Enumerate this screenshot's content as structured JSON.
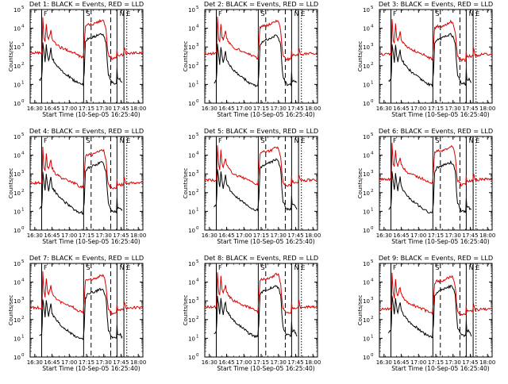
{
  "colors": {
    "events": "#000000",
    "lld": "#dd0000",
    "background": "#ffffff",
    "axis": "#000000"
  },
  "chart_data": {
    "type": "line",
    "ylabel": "Counts/sec",
    "xlabel": "Start Time (10-Sep-05 16:25:40)",
    "xticks": [
      "16:30",
      "16:45",
      "17:00",
      "17:15",
      "17:30",
      "17:45",
      "18:00"
    ],
    "xtick_minutes": [
      30,
      45,
      60,
      75,
      90,
      105,
      120
    ],
    "xlim_minutes": [
      26,
      124
    ],
    "ylim_log10": [
      0,
      5
    ],
    "ytick_exponents": [
      "0",
      "1",
      "2",
      "3",
      "4",
      "5"
    ],
    "ytick_base": "10",
    "markers": {
      "solid_minutes": [
        36,
        72.5,
        101.5,
        107.5
      ],
      "dashed_minutes": [
        79,
        96
      ],
      "dotted_minutes": [
        110
      ],
      "flags": [
        {
          "minute": 37,
          "label": "F"
        },
        {
          "minute": 74,
          "label": "S"
        },
        {
          "minute": 103,
          "label": "N"
        },
        {
          "minute": 109,
          "label": "E"
        }
      ]
    },
    "panels": [
      {
        "title": "Det 1: BLACK = Events, RED = LLD",
        "variant": 0
      },
      {
        "title": "Det 2: BLACK = Events, RED = LLD",
        "variant": 1
      },
      {
        "title": "Det 3: BLACK = Events, RED = LLD",
        "variant": 2
      },
      {
        "title": "Det 4: BLACK = Events, RED = LLD",
        "variant": 3
      },
      {
        "title": "Det 5: BLACK = Events, RED = LLD",
        "variant": 4
      },
      {
        "title": "Det 6: BLACK = Events, RED = LLD",
        "variant": 5
      },
      {
        "title": "Det 7: BLACK = Events, RED = LLD",
        "variant": 6
      },
      {
        "title": "Det 8: BLACK = Events, RED = LLD",
        "variant": 7
      },
      {
        "title": "Det 9: BLACK = Events, RED = LLD",
        "variant": 8
      }
    ],
    "series": [
      {
        "name": "Events",
        "color": "#000000",
        "points_minute_log10": [
          [
            34,
            1.2
          ],
          [
            36,
            1.3
          ],
          [
            36.5,
            1.8
          ],
          [
            37,
            3.2
          ],
          [
            38,
            2.7
          ],
          [
            39,
            2.2
          ],
          [
            40,
            3.1
          ],
          [
            41,
            2.6
          ],
          [
            42,
            2.2
          ],
          [
            44,
            2.9
          ],
          [
            45,
            2.4
          ],
          [
            48,
            2.1
          ],
          [
            52,
            1.8
          ],
          [
            56,
            1.6
          ],
          [
            60,
            1.4
          ],
          [
            64,
            1.2
          ],
          [
            68,
            1.05
          ],
          [
            72,
            1.0
          ],
          [
            73,
            1.6
          ],
          [
            74,
            3.2
          ],
          [
            76,
            3.4
          ],
          [
            80,
            3.5
          ],
          [
            84,
            3.6
          ],
          [
            88,
            3.7
          ],
          [
            90,
            3.6
          ],
          [
            92,
            3.2
          ],
          [
            93,
            2.2
          ],
          [
            94,
            1.5
          ],
          [
            97,
            1.1
          ],
          [
            101,
            1.05
          ],
          [
            101.5,
            1.8
          ],
          [
            102,
            1.3
          ],
          [
            104,
            1.3
          ],
          [
            105,
            1.2
          ],
          [
            106,
            1.1
          ]
        ]
      },
      {
        "name": "LLD",
        "color": "#dd0000",
        "points_minute_log10": [
          [
            26,
            2.6
          ],
          [
            30,
            2.6
          ],
          [
            34,
            2.6
          ],
          [
            36,
            2.6
          ],
          [
            36.5,
            3.0
          ],
          [
            37,
            4.5
          ],
          [
            38,
            3.4
          ],
          [
            39,
            3.2
          ],
          [
            40,
            4.2
          ],
          [
            41,
            3.5
          ],
          [
            42,
            3.3
          ],
          [
            44,
            3.8
          ],
          [
            45,
            3.4
          ],
          [
            48,
            3.1
          ],
          [
            52,
            2.9
          ],
          [
            56,
            2.8
          ],
          [
            60,
            2.7
          ],
          [
            64,
            2.6
          ],
          [
            68,
            2.45
          ],
          [
            72,
            2.35
          ],
          [
            73,
            3.0
          ],
          [
            74,
            4.0
          ],
          [
            76,
            4.1
          ],
          [
            80,
            4.1
          ],
          [
            84,
            4.2
          ],
          [
            88,
            4.35
          ],
          [
            90,
            4.3
          ],
          [
            92,
            3.8
          ],
          [
            93,
            3.0
          ],
          [
            94,
            2.5
          ],
          [
            97,
            2.3
          ],
          [
            101,
            2.3
          ],
          [
            101.5,
            2.8
          ],
          [
            102,
            2.5
          ],
          [
            105,
            2.5
          ],
          [
            107,
            2.5
          ],
          [
            108,
            2.9
          ],
          [
            109,
            2.6
          ],
          [
            110,
            2.55
          ],
          [
            116,
            2.6
          ],
          [
            124,
            2.6
          ]
        ]
      }
    ]
  }
}
